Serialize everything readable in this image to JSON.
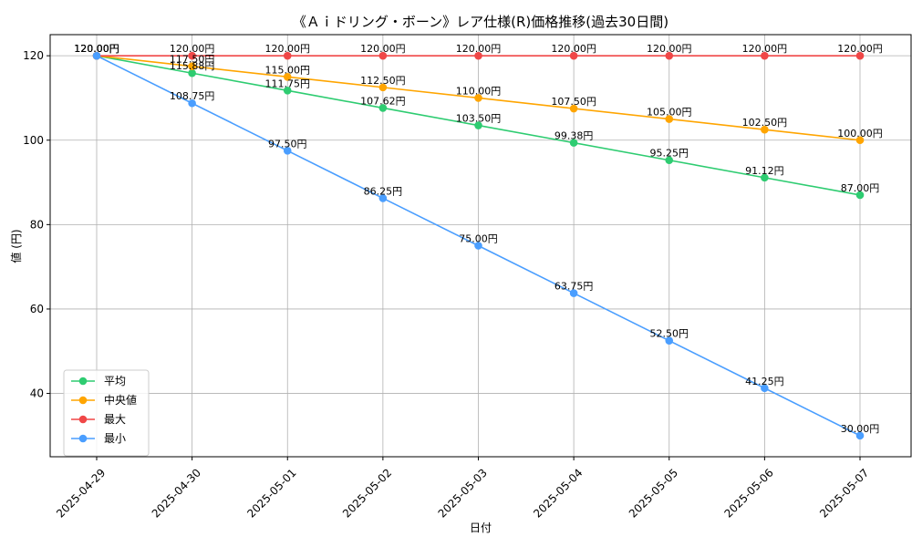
{
  "chart_data": {
    "type": "line",
    "title": "《Ａｉドリング・ボーン》レア仕様(R)価格推移(過去30日間)",
    "xlabel": "日付",
    "ylabel": "値 (円)",
    "categories": [
      "2025-04-29",
      "2025-04-30",
      "2025-05-01",
      "2025-05-02",
      "2025-05-03",
      "2025-05-04",
      "2025-05-05",
      "2025-05-06",
      "2025-05-07"
    ],
    "ylim": [
      25,
      125
    ],
    "yticks": [
      40,
      60,
      80,
      100,
      120
    ],
    "grid": true,
    "legend_position": "lower-left",
    "series": [
      {
        "name": "平均",
        "color": "#2ecc71",
        "values": [
          120.0,
          115.88,
          111.75,
          107.62,
          103.5,
          99.38,
          95.25,
          91.12,
          87.0
        ],
        "labels": [
          "120.00円",
          "115.88円",
          "111.75円",
          "107.62円",
          "103.50円",
          "99.38円",
          "95.25円",
          "91.12円",
          "87.00円"
        ]
      },
      {
        "name": "中央値",
        "color": "#ffa500",
        "values": [
          120.0,
          117.5,
          115.0,
          112.5,
          110.0,
          107.5,
          105.0,
          102.5,
          100.0
        ],
        "labels": [
          "120.00円",
          "117.50円",
          "115.00円",
          "112.50円",
          "110.00円",
          "107.50円",
          "105.00円",
          "102.50円",
          "100.00円"
        ]
      },
      {
        "name": "最大",
        "color": "#f04747",
        "values": [
          120.0,
          120.0,
          120.0,
          120.0,
          120.0,
          120.0,
          120.0,
          120.0,
          120.0
        ],
        "labels": [
          "120.00円",
          "120.00円",
          "120.00円",
          "120.00円",
          "120.00円",
          "120.00円",
          "120.00円",
          "120.00円",
          "120.00円"
        ]
      },
      {
        "name": "最小",
        "color": "#4a9eff",
        "values": [
          120.0,
          108.75,
          97.5,
          86.25,
          75.0,
          63.75,
          52.5,
          41.25,
          30.0
        ],
        "labels": [
          "120.00円",
          "108.75円",
          "97.50円",
          "86.25円",
          "75.00円",
          "63.75円",
          "52.50円",
          "41.25円",
          "30.00円"
        ]
      }
    ]
  }
}
